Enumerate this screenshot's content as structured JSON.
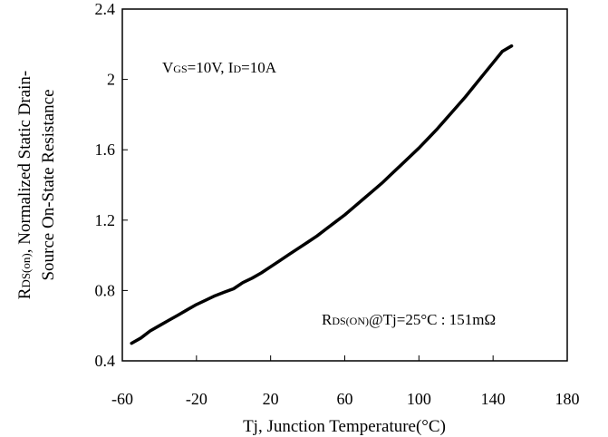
{
  "chart_data": {
    "type": "line",
    "xlabel": "Tj, Junction Temperature(°C)",
    "ylabel_parts": [
      "R",
      "DS(on)",
      ", Normalized Static Drain-"
    ],
    "ylabel_line2": "Source On-State Resistance",
    "xlim": [
      -60,
      180
    ],
    "ylim": [
      0.4,
      2.4
    ],
    "xticks": [
      "-60",
      "-20",
      "20",
      "60",
      "100",
      "140",
      "180"
    ],
    "yticks": [
      "0.4",
      "0.8",
      "1.2",
      "1.6",
      "2",
      "2.4"
    ],
    "grid": false,
    "series": [
      {
        "x": [
          -55,
          -50,
          -45,
          -40,
          -35,
          -30,
          -25,
          -20,
          -15,
          -10,
          -5,
          0,
          5,
          10,
          15,
          20,
          25,
          30,
          35,
          40,
          45,
          50,
          55,
          60,
          65,
          70,
          75,
          80,
          85,
          90,
          95,
          100,
          105,
          110,
          115,
          120,
          125,
          130,
          135,
          140,
          145,
          150
        ],
        "values": [
          0.5,
          0.53,
          0.57,
          0.6,
          0.63,
          0.66,
          0.69,
          0.72,
          0.745,
          0.77,
          0.79,
          0.81,
          0.845,
          0.87,
          0.9,
          0.935,
          0.97,
          1.005,
          1.04,
          1.075,
          1.11,
          1.15,
          1.19,
          1.23,
          1.275,
          1.32,
          1.365,
          1.41,
          1.46,
          1.51,
          1.56,
          1.61,
          1.665,
          1.72,
          1.78,
          1.84,
          1.9,
          1.965,
          2.03,
          2.095,
          2.16,
          2.19
        ]
      }
    ],
    "annotations": {
      "conditions": {
        "v": "V",
        "gs": "GS",
        "mid": "=10V, I",
        "d": "D",
        "end": "=10A"
      },
      "reference": {
        "r": "R",
        "sub": "DS(ON)",
        "rest": "@Tj=25°C : 151mΩ"
      }
    }
  }
}
